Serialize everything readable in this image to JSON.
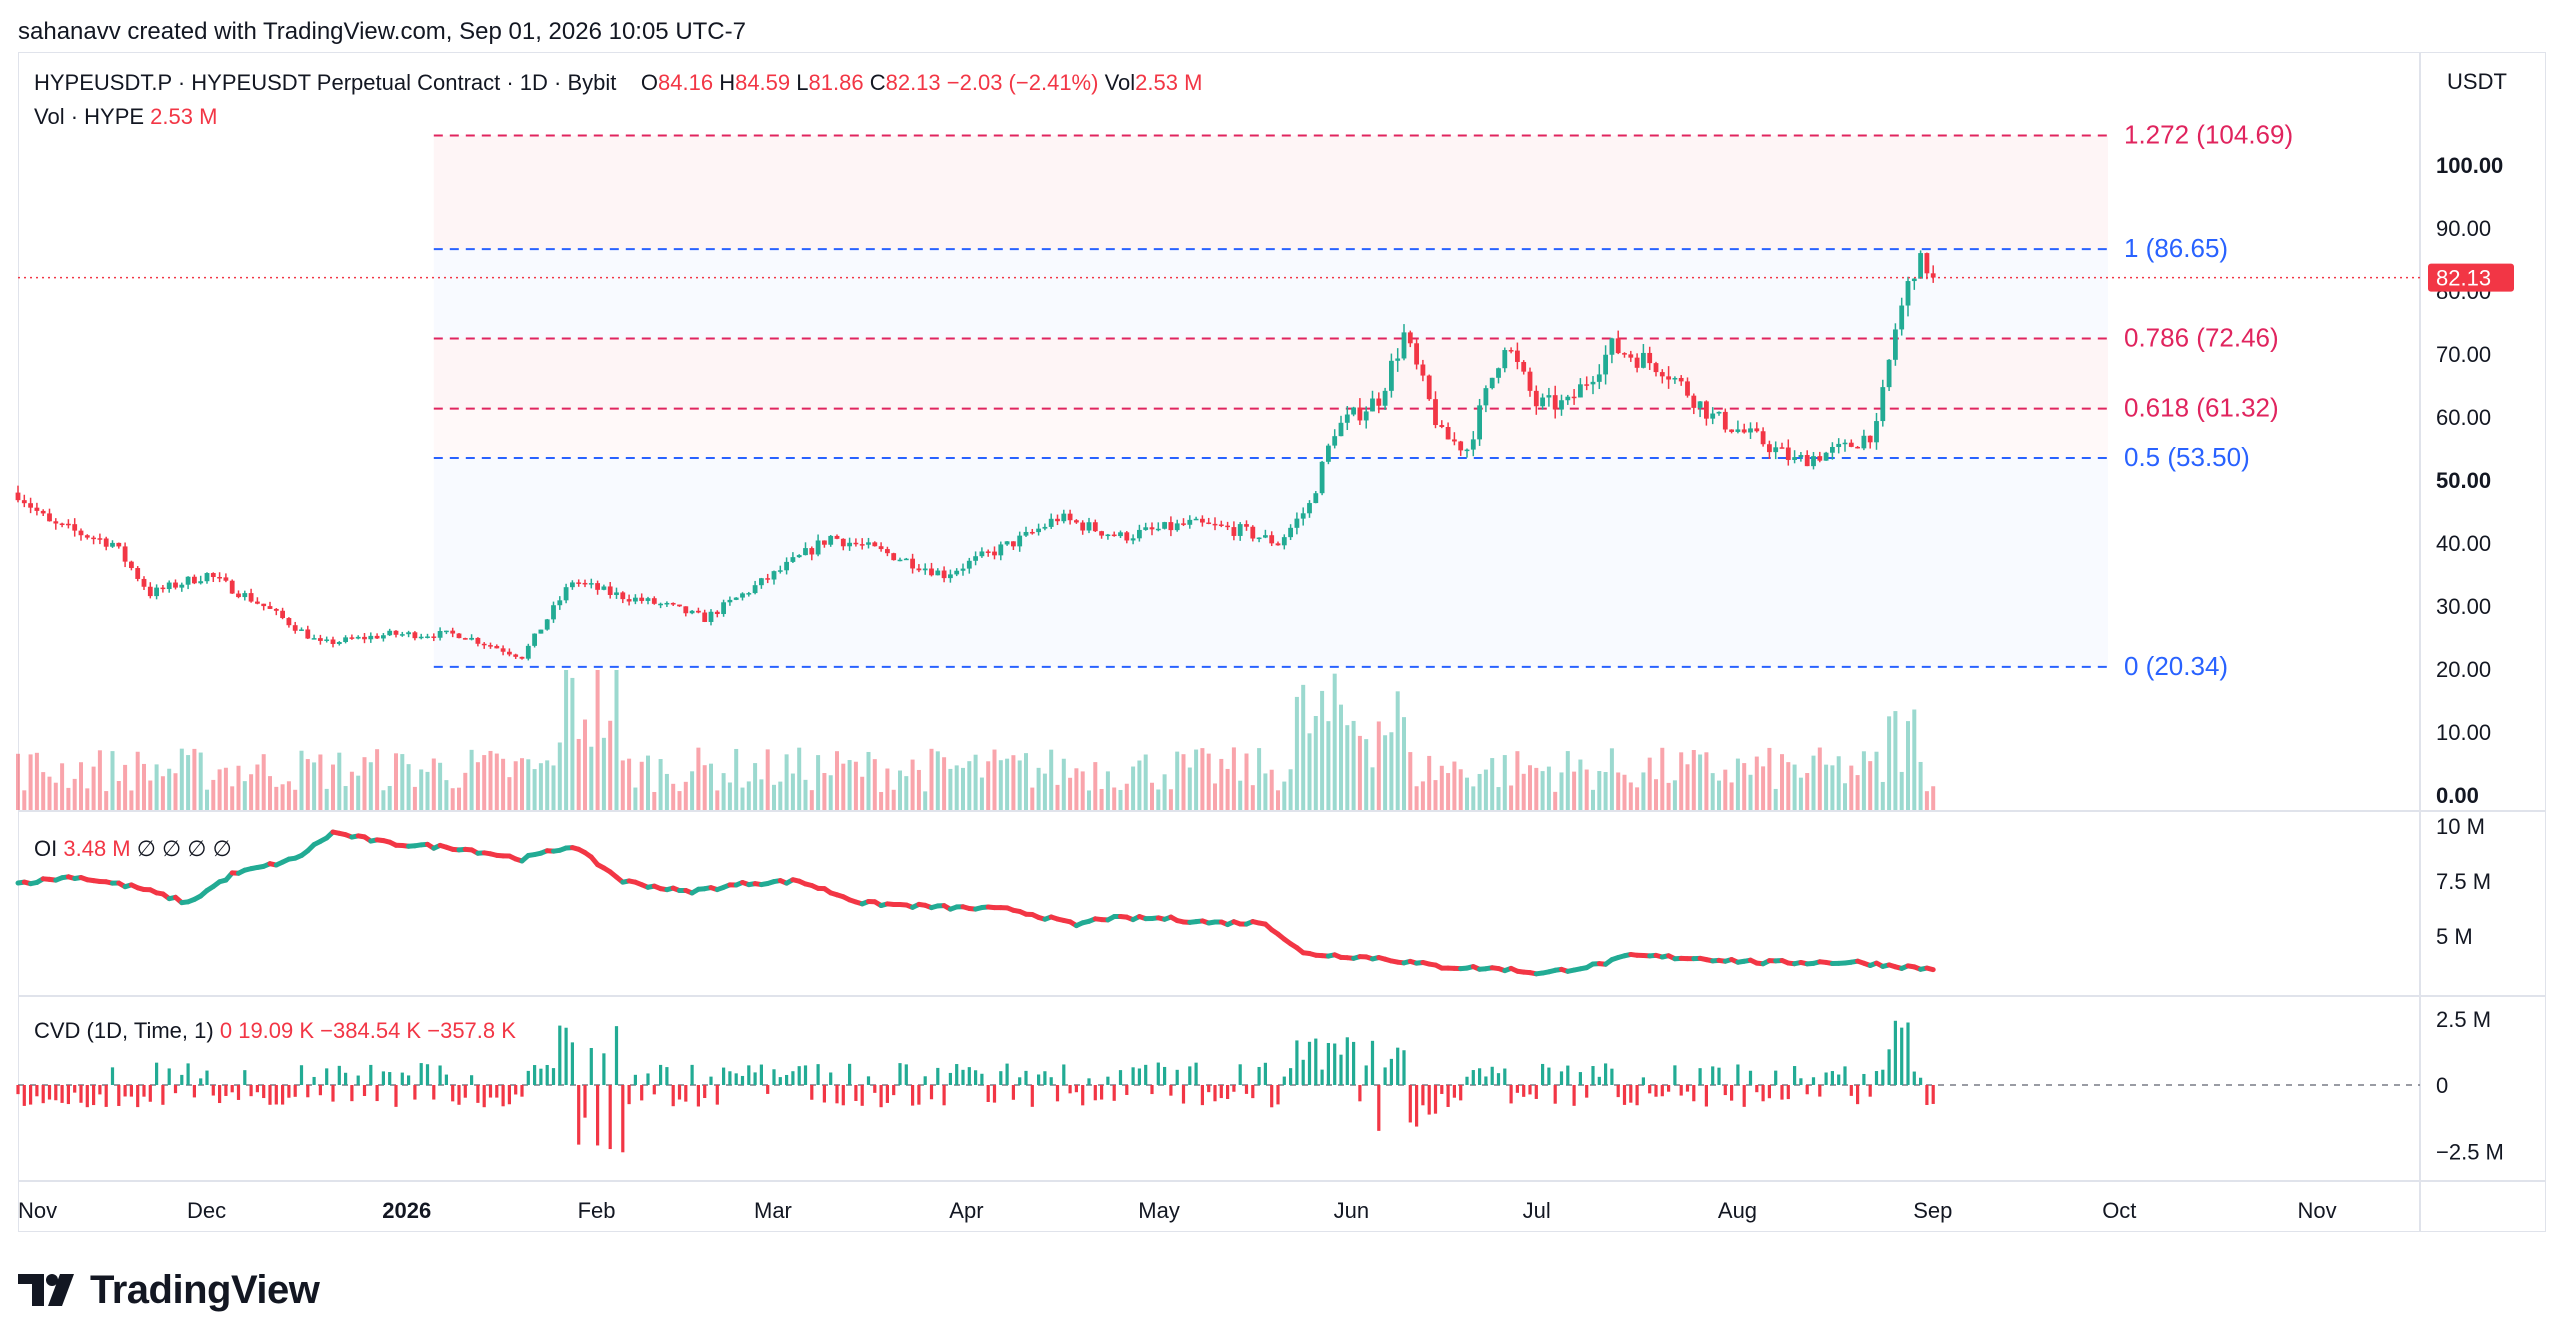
{
  "header": {
    "attribution": "sahanavv created with TradingView.com, Sep 01, 2026 10:05 UTC-7"
  },
  "legend": {
    "symbol": "HYPEUSDT.P · HYPEUSDT Perpetual Contract · 1D · Bybit",
    "o_label": "O",
    "o_value": "84.16",
    "h_label": "H",
    "h_value": "84.59",
    "l_label": "L",
    "l_value": "81.86",
    "c_label": "C",
    "c_value": "82.13",
    "change": "−2.03 (−2.41%)",
    "vol_label": "Vol",
    "vol_value": "2.53 M",
    "vol_series_label": "Vol · HYPE",
    "vol_series_value": "2.53 M",
    "oi_label": "OI",
    "oi_value": "3.48 M",
    "oi_extras": "∅ ∅ ∅ ∅",
    "cvd_label": "CVD (1D, Time, 1)",
    "cvd_v1": "0",
    "cvd_v2": "19.09 K",
    "cvd_v3": "−384.54 K",
    "cvd_v4": "−357.8 K"
  },
  "unit_button": "USDT",
  "brand": {
    "name": "TradingView"
  },
  "colors": {
    "up": "#22ab94",
    "down": "#f23645",
    "fib_blue": "#2962ff",
    "fib_red": "#e0245e",
    "price_label_bg": "#f23645",
    "grid": "#e0e3eb"
  },
  "chart_data": [
    {
      "type": "candlestick",
      "title": "HYPEUSDT.P · HYPEUSDT Perpetual Contract · 1D · Bybit",
      "x_ticks": [
        "Nov",
        "Dec",
        "2026",
        "Feb",
        "Mar",
        "Apr",
        "May",
        "Jun",
        "Jul",
        "Aug",
        "Sep",
        "Oct",
        "Nov"
      ],
      "y_ticks": [
        "100.00",
        "90.00",
        "80.00",
        "70.00",
        "60.00",
        "50.00",
        "40.00",
        "30.00",
        "20.00",
        "10.00",
        "0.00"
      ],
      "ylim": [
        0,
        110
      ],
      "last_price": "82.13",
      "x_start": "2025-11-01",
      "x_end": "2026-09-01",
      "anchors": [
        [
          "2025-11-01",
          48
        ],
        [
          "2025-11-06",
          43
        ],
        [
          "2025-11-16",
          40
        ],
        [
          "2025-11-22",
          32
        ],
        [
          "2025-12-01",
          35
        ],
        [
          "2025-12-10",
          30
        ],
        [
          "2025-12-19",
          24
        ],
        [
          "2025-12-30",
          25.5
        ],
        [
          "2026-01-10",
          25.5
        ],
        [
          "2026-01-20",
          22
        ],
        [
          "2026-01-28",
          34
        ],
        [
          "2026-02-03",
          32
        ],
        [
          "2026-02-12",
          30
        ],
        [
          "2026-02-18",
          28
        ],
        [
          "2026-03-01",
          35
        ],
        [
          "2026-03-10",
          41
        ],
        [
          "2026-03-20",
          38
        ],
        [
          "2026-03-28",
          35
        ],
        [
          "2026-04-10",
          41
        ],
        [
          "2026-04-15",
          44
        ],
        [
          "2026-04-25",
          41
        ],
        [
          "2026-05-06",
          43
        ],
        [
          "2026-05-14",
          42
        ],
        [
          "2026-05-20",
          40
        ],
        [
          "2026-05-25",
          46
        ],
        [
          "2026-05-29",
          58
        ],
        [
          "2026-06-05",
          63
        ],
        [
          "2026-06-09",
          73
        ],
        [
          "2026-06-15",
          57
        ],
        [
          "2026-06-19",
          55
        ],
        [
          "2026-06-25",
          72
        ],
        [
          "2026-06-30",
          62
        ],
        [
          "2026-07-05",
          62
        ],
        [
          "2026-07-12",
          71
        ],
        [
          "2026-07-20",
          68
        ],
        [
          "2026-07-28",
          60
        ],
        [
          "2026-08-05",
          56
        ],
        [
          "2026-08-10",
          53
        ],
        [
          "2026-08-18",
          55
        ],
        [
          "2026-08-23",
          58
        ],
        [
          "2026-08-26",
          74
        ],
        [
          "2026-08-29",
          84
        ],
        [
          "2026-08-31",
          84
        ],
        [
          "2026-09-01",
          82.13
        ]
      ],
      "fib_levels": [
        {
          "label": "1.272 (104.69)",
          "value": 104.69
        },
        {
          "label": "1 (86.65)",
          "value": 86.65
        },
        {
          "label": "0.786 (72.46)",
          "value": 72.46
        },
        {
          "label": "0.618 (61.32)",
          "value": 61.32
        },
        {
          "label": "0.5 (53.50)",
          "value": 53.5
        },
        {
          "label": "0 (20.34)",
          "value": 20.34
        }
      ],
      "fib_date_start": "2026-01-06",
      "fib_date_end": "2026-11-01"
    },
    {
      "type": "bar",
      "title": "Vol · HYPE",
      "last_value": "2.53 M",
      "note": "daily volume colored by candle direction"
    },
    {
      "type": "line",
      "title": "OI",
      "y_ticks": [
        "10 M",
        "7.5 M",
        "5 M"
      ],
      "ylim_millions": [
        3,
        10
      ],
      "last_value": "3.48 M",
      "anchors": [
        [
          "2025-11-01",
          7.4
        ],
        [
          "2025-11-10",
          7.7
        ],
        [
          "2025-11-20",
          7.2
        ],
        [
          "2025-11-28",
          6.5
        ],
        [
          "2025-12-05",
          7.8
        ],
        [
          "2025-12-15",
          8.5
        ],
        [
          "2025-12-21",
          9.7
        ],
        [
          "2025-12-30",
          9.2
        ],
        [
          "2026-01-10",
          9.0
        ],
        [
          "2026-01-20",
          8.5
        ],
        [
          "2026-01-28",
          9.1
        ],
        [
          "2026-02-05",
          7.5
        ],
        [
          "2026-02-15",
          7.0
        ],
        [
          "2026-02-25",
          7.4
        ],
        [
          "2026-03-05",
          7.5
        ],
        [
          "2026-03-15",
          6.5
        ],
        [
          "2026-03-28",
          6.3
        ],
        [
          "2026-04-08",
          6.2
        ],
        [
          "2026-04-18",
          5.5
        ],
        [
          "2026-04-22",
          5.8
        ],
        [
          "2026-05-02",
          5.8
        ],
        [
          "2026-05-10",
          5.6
        ],
        [
          "2026-05-18",
          5.6
        ],
        [
          "2026-05-24",
          4.2
        ],
        [
          "2026-06-05",
          4.0
        ],
        [
          "2026-06-15",
          3.6
        ],
        [
          "2026-06-25",
          3.5
        ],
        [
          "2026-07-01",
          3.3
        ],
        [
          "2026-07-10",
          3.7
        ],
        [
          "2026-07-15",
          4.1
        ],
        [
          "2026-07-25",
          4.0
        ],
        [
          "2026-08-05",
          3.8
        ],
        [
          "2026-08-20",
          3.8
        ],
        [
          "2026-09-01",
          3.48
        ]
      ]
    },
    {
      "type": "bar",
      "title": "CVD (1D, Time, 1)",
      "y_ticks": [
        "2.5 M",
        "0",
        "−2.5 M"
      ],
      "ylim_millions": [
        -3.5,
        3.5
      ]
    }
  ]
}
